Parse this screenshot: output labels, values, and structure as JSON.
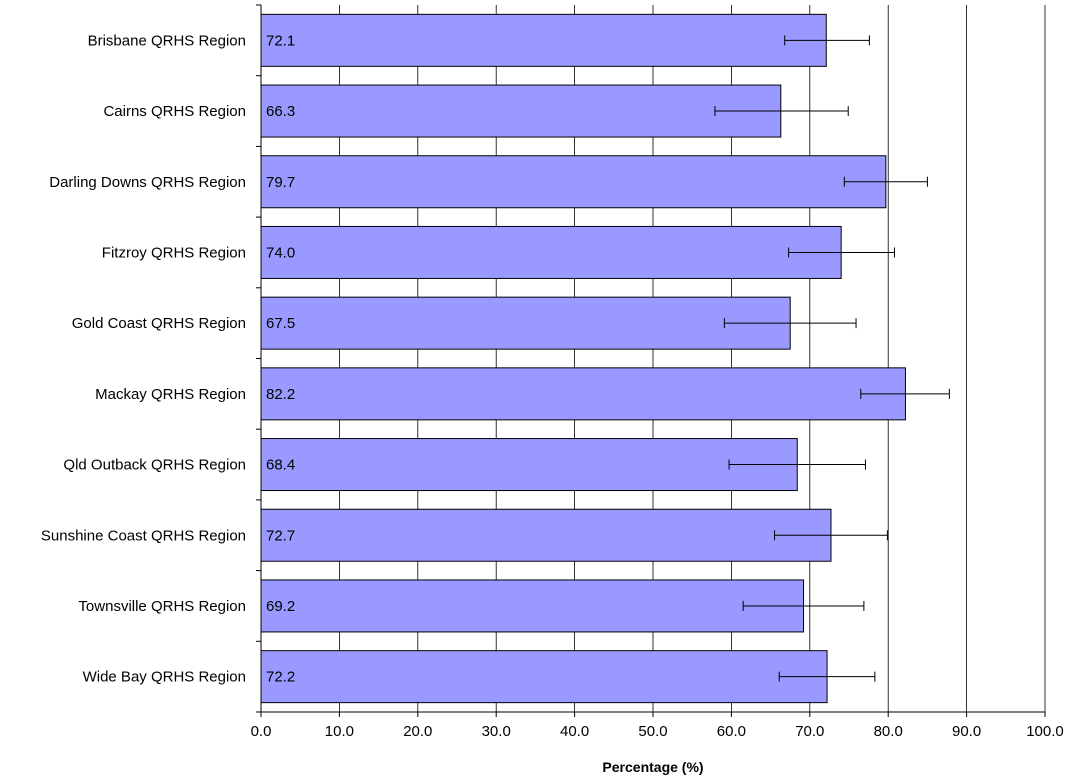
{
  "chart_data": {
    "type": "bar",
    "orientation": "horizontal",
    "categories": [
      "Brisbane QRHS Region",
      "Cairns QRHS Region",
      "Darling Downs QRHS Region",
      "Fitzroy QRHS Region",
      "Gold Coast QRHS Region",
      "Mackay QRHS Region",
      "Qld Outback QRHS Region",
      "Sunshine Coast QRHS Region",
      "Townsville QRHS Region",
      "Wide Bay QRHS Region"
    ],
    "values": [
      72.1,
      66.3,
      79.7,
      74.0,
      67.5,
      82.2,
      68.4,
      72.7,
      69.2,
      72.2
    ],
    "value_labels": [
      "72.1",
      "66.3",
      "79.7",
      "74.0",
      "67.5",
      "82.2",
      "68.4",
      "72.7",
      "69.2",
      "72.2"
    ],
    "error_low": [
      66.8,
      57.9,
      74.4,
      67.3,
      59.1,
      76.5,
      59.7,
      65.5,
      61.5,
      66.1
    ],
    "error_high": [
      77.6,
      74.9,
      85.0,
      80.8,
      75.9,
      87.8,
      77.1,
      79.9,
      76.9,
      78.3
    ],
    "xlabel": "Percentage (%)",
    "ylabel": "",
    "title": "",
    "xlim": [
      0,
      100
    ],
    "x_ticks": [
      "0.0",
      "10.0",
      "20.0",
      "30.0",
      "40.0",
      "50.0",
      "60.0",
      "70.0",
      "80.0",
      "90.0",
      "100.0"
    ],
    "grid": "vertical",
    "legend": "none",
    "colors": {
      "bar_fill": "#9999ff",
      "bar_stroke": "#000000",
      "grid": "#000000"
    }
  }
}
